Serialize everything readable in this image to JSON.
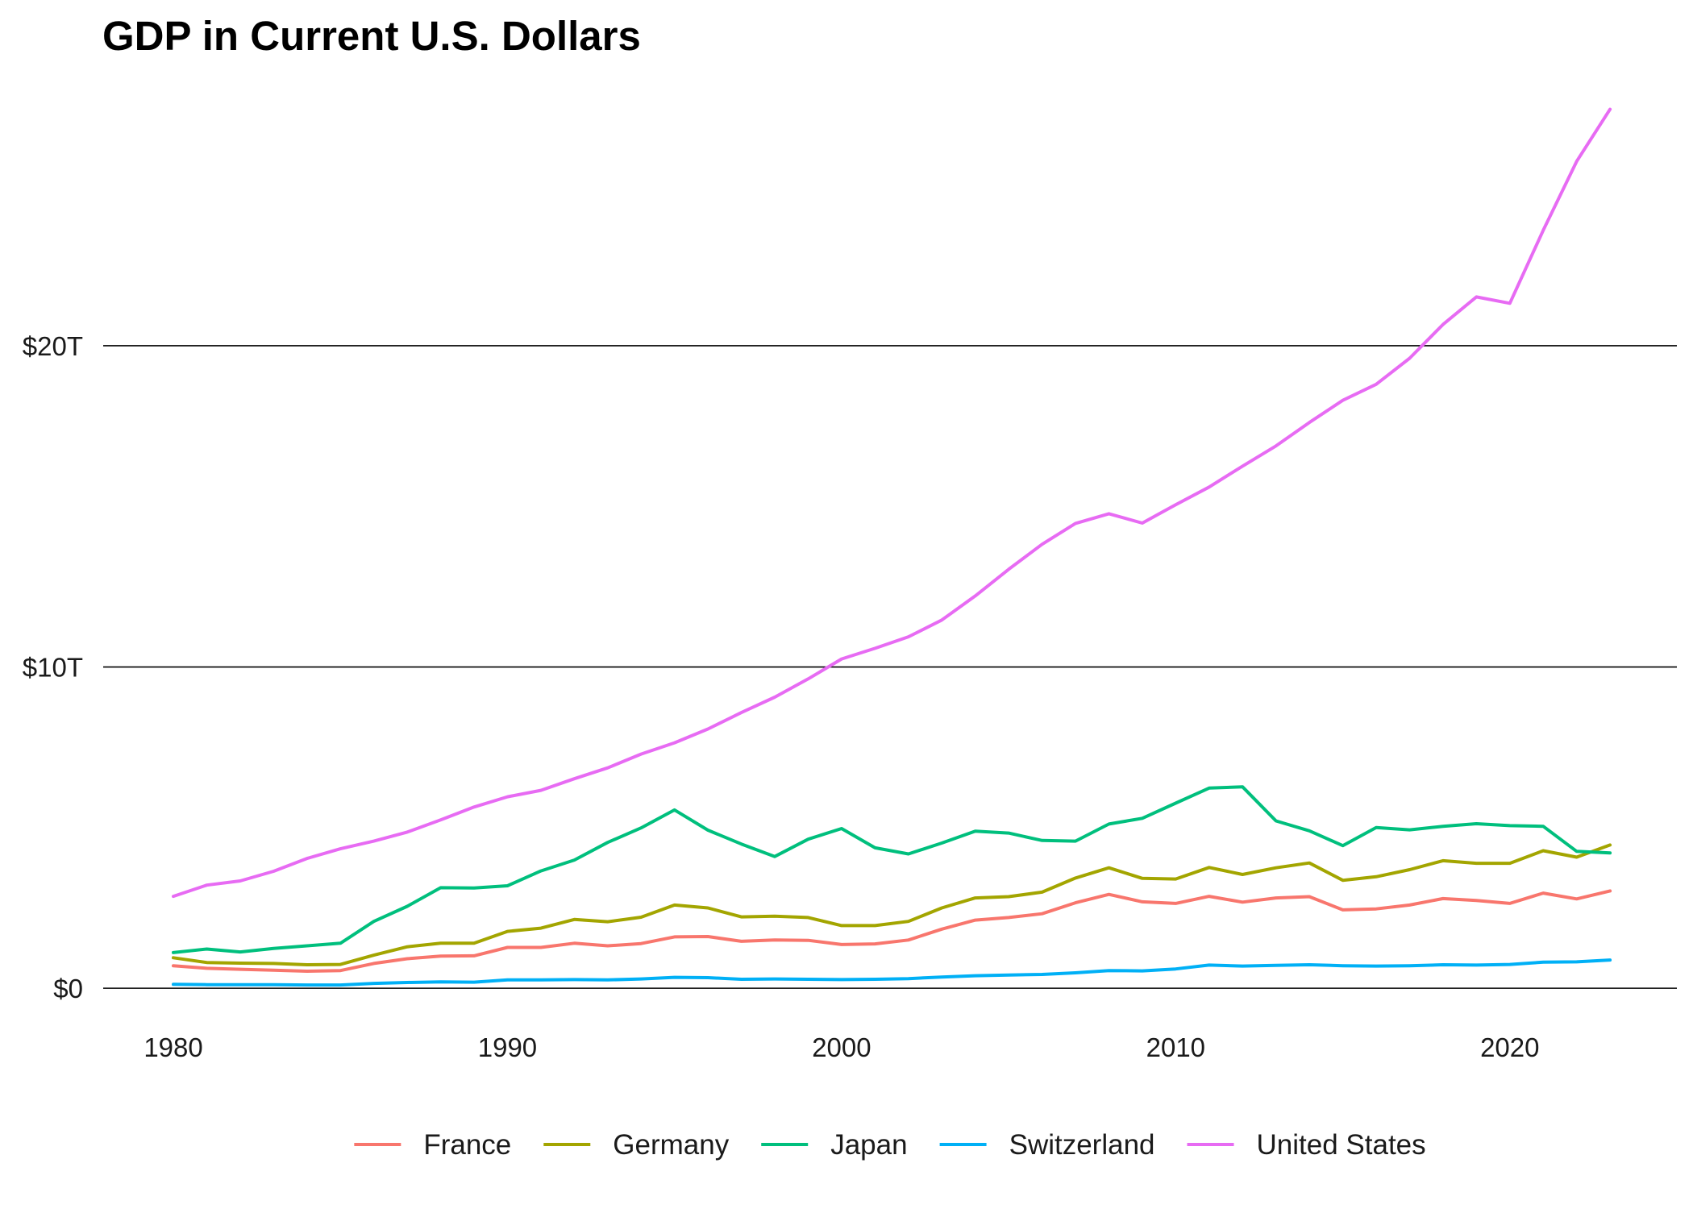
{
  "chart_data": {
    "type": "line",
    "title": "GDP in Current U.S. Dollars",
    "xlabel": "",
    "ylabel": "",
    "xlim": [
      1977.9,
      2025.0
    ],
    "ylim": [
      -0.9,
      27.5
    ],
    "x_ticks": [
      {
        "value": 1980,
        "label": "1980"
      },
      {
        "value": 1990,
        "label": "1990"
      },
      {
        "value": 2000,
        "label": "2000"
      },
      {
        "value": 2010,
        "label": "2010"
      },
      {
        "value": 2020,
        "label": "2020"
      }
    ],
    "y_ticks": [
      {
        "value": 0,
        "label": "$0"
      },
      {
        "value": 10,
        "label": "$10T"
      },
      {
        "value": 20,
        "label": "$20T"
      }
    ],
    "grid": "horizontal major lines",
    "legend_position": "bottom",
    "x": [
      1980,
      1981,
      1982,
      1983,
      1984,
      1985,
      1986,
      1987,
      1988,
      1989,
      1990,
      1991,
      1992,
      1993,
      1994,
      1995,
      1996,
      1997,
      1998,
      1999,
      2000,
      2001,
      2002,
      2003,
      2004,
      2005,
      2006,
      2007,
      2008,
      2009,
      2010,
      2011,
      2012,
      2013,
      2014,
      2015,
      2016,
      2017,
      2018,
      2019,
      2020,
      2021,
      2022,
      2023
    ],
    "series": [
      {
        "name": "France",
        "color": "#F8766D",
        "values": [
          0.7,
          0.62,
          0.59,
          0.56,
          0.53,
          0.55,
          0.77,
          0.92,
          1.0,
          1.01,
          1.27,
          1.27,
          1.4,
          1.32,
          1.39,
          1.6,
          1.61,
          1.46,
          1.5,
          1.49,
          1.36,
          1.38,
          1.5,
          1.84,
          2.12,
          2.2,
          2.32,
          2.66,
          2.92,
          2.69,
          2.64,
          2.86,
          2.68,
          2.81,
          2.85,
          2.44,
          2.47,
          2.59,
          2.79,
          2.73,
          2.64,
          2.96,
          2.78,
          3.03
        ]
      },
      {
        "name": "Germany",
        "color": "#A3A500",
        "values": [
          0.95,
          0.8,
          0.78,
          0.77,
          0.73,
          0.74,
          1.03,
          1.29,
          1.4,
          1.4,
          1.77,
          1.87,
          2.14,
          2.07,
          2.21,
          2.59,
          2.5,
          2.22,
          2.24,
          2.2,
          1.95,
          1.95,
          2.08,
          2.5,
          2.81,
          2.85,
          2.99,
          3.43,
          3.75,
          3.42,
          3.4,
          3.76,
          3.54,
          3.75,
          3.9,
          3.36,
          3.47,
          3.69,
          3.97,
          3.89,
          3.89,
          4.28,
          4.08,
          4.46
        ]
      },
      {
        "name": "Japan",
        "color": "#00BF7D",
        "values": [
          1.11,
          1.22,
          1.13,
          1.24,
          1.32,
          1.4,
          2.08,
          2.55,
          3.13,
          3.12,
          3.19,
          3.65,
          3.99,
          4.54,
          4.99,
          5.55,
          4.92,
          4.49,
          4.1,
          4.64,
          4.97,
          4.37,
          4.18,
          4.52,
          4.89,
          4.83,
          4.6,
          4.58,
          5.11,
          5.29,
          5.76,
          6.23,
          6.27,
          5.21,
          4.9,
          4.44,
          5.0,
          4.93,
          5.04,
          5.12,
          5.06,
          5.04,
          4.26,
          4.21
        ]
      },
      {
        "name": "Switzerland",
        "color": "#00B0F6",
        "values": [
          0.12,
          0.11,
          0.11,
          0.11,
          0.1,
          0.1,
          0.15,
          0.18,
          0.2,
          0.19,
          0.26,
          0.26,
          0.27,
          0.26,
          0.29,
          0.34,
          0.33,
          0.28,
          0.29,
          0.28,
          0.27,
          0.28,
          0.3,
          0.35,
          0.39,
          0.41,
          0.43,
          0.48,
          0.55,
          0.54,
          0.6,
          0.72,
          0.69,
          0.71,
          0.73,
          0.7,
          0.69,
          0.7,
          0.73,
          0.72,
          0.74,
          0.81,
          0.82,
          0.88
        ]
      },
      {
        "name": "United States",
        "color": "#E76BF3",
        "values": [
          2.86,
          3.21,
          3.34,
          3.64,
          4.04,
          4.34,
          4.58,
          4.86,
          5.24,
          5.64,
          5.96,
          6.16,
          6.52,
          6.86,
          7.29,
          7.64,
          8.07,
          8.58,
          9.06,
          9.63,
          10.25,
          10.58,
          10.94,
          11.46,
          12.21,
          13.04,
          13.82,
          14.47,
          14.77,
          14.48,
          15.05,
          15.6,
          16.25,
          16.88,
          17.61,
          18.3,
          18.8,
          19.61,
          20.66,
          21.52,
          21.32,
          23.59,
          25.74,
          27.36
        ]
      }
    ]
  }
}
